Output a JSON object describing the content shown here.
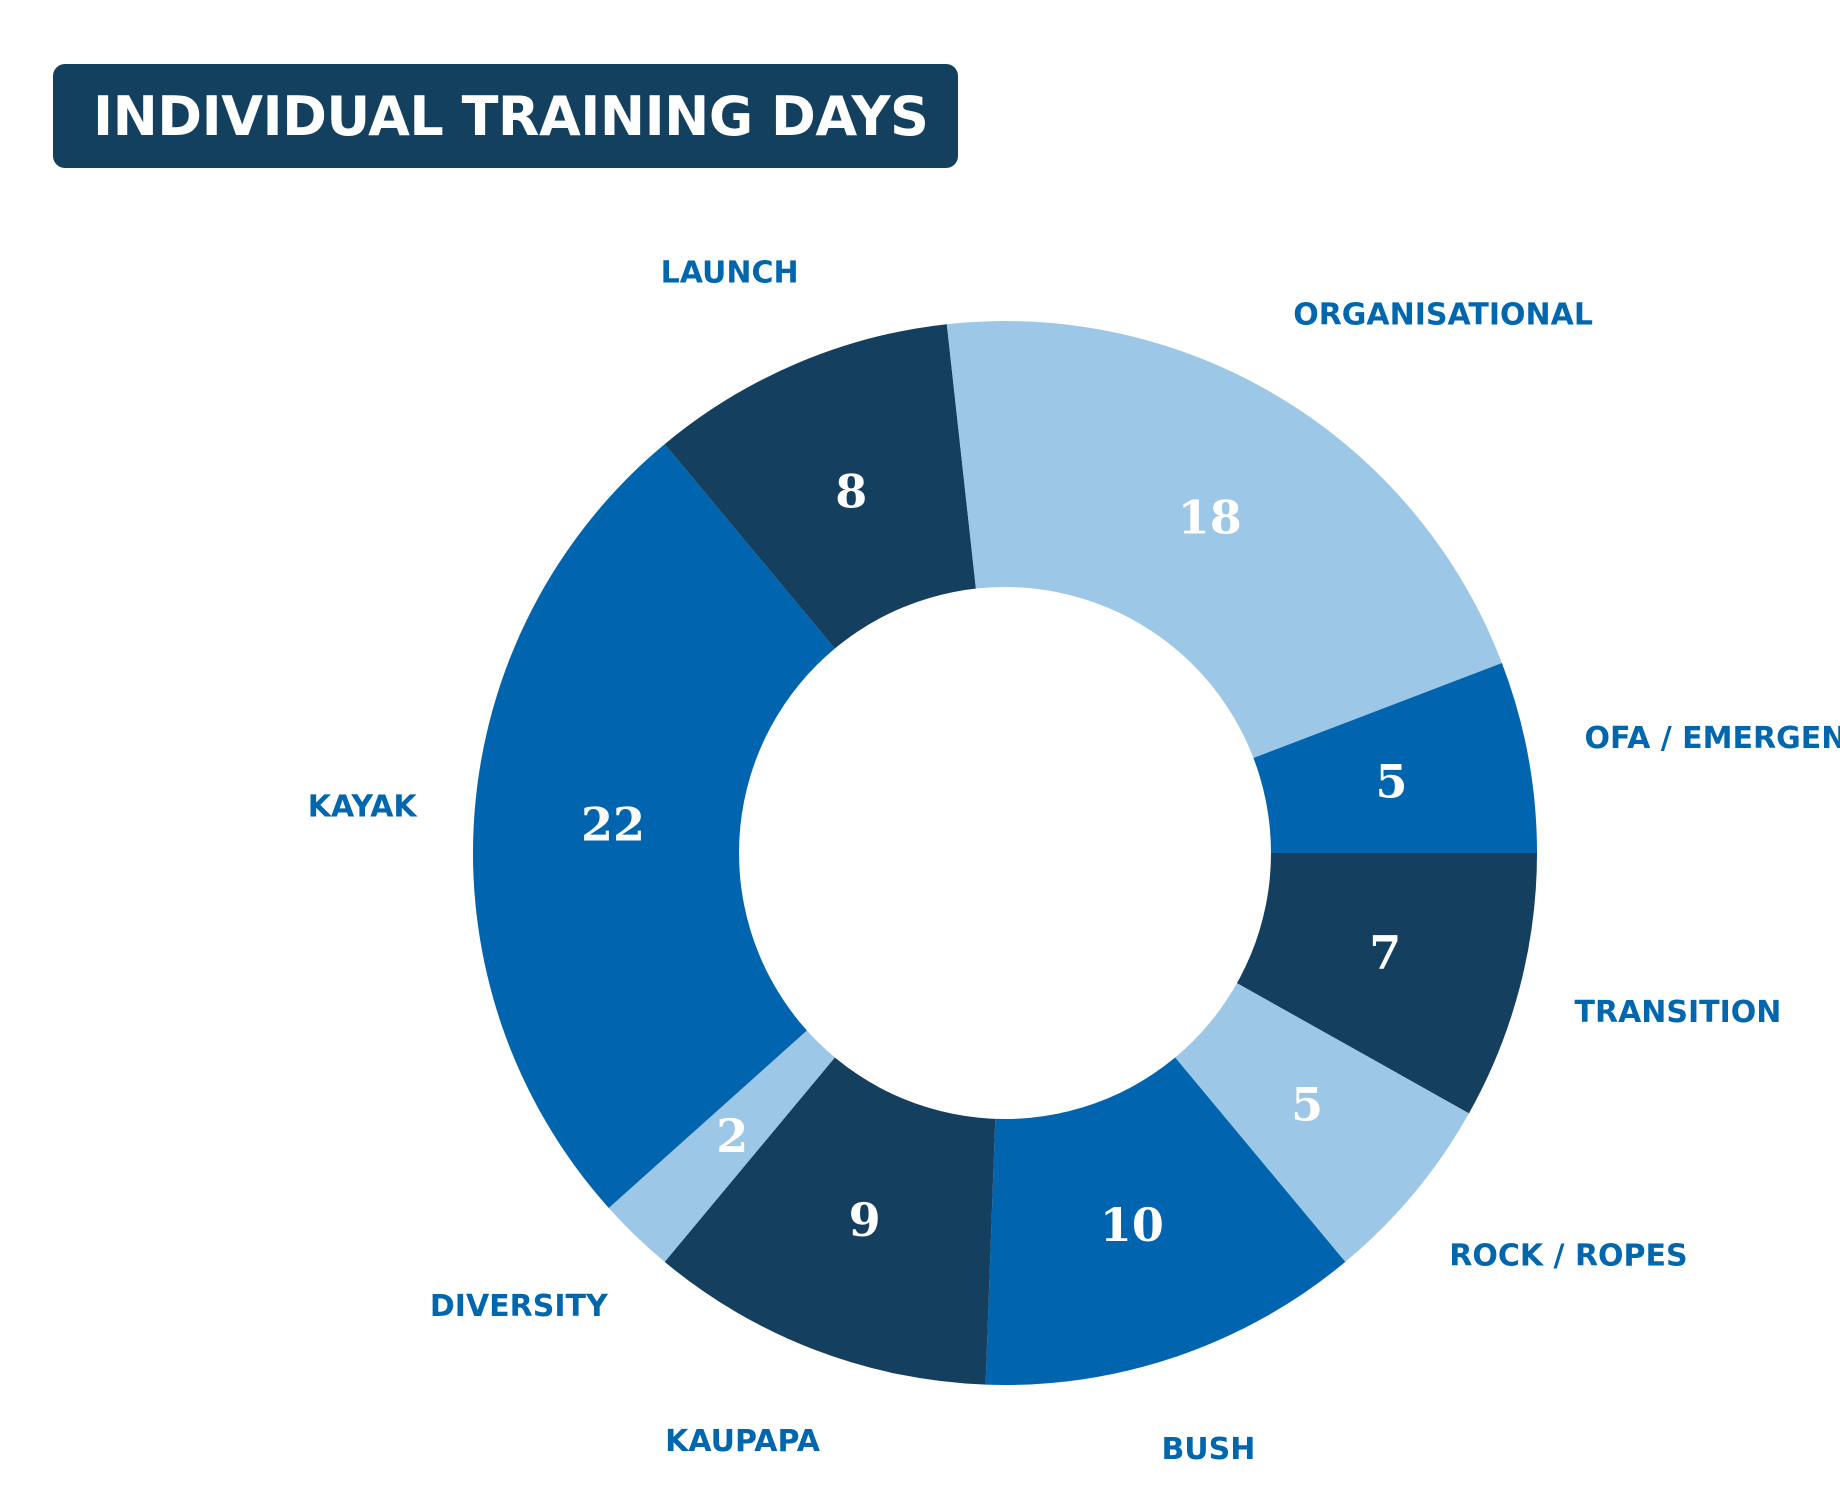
{
  "title": "INDIVIDUAL TRAINING DAYS",
  "chart_data": {
    "type": "pie",
    "subtype": "donut",
    "categories": [
      "TRANSITION",
      "ROCK / ROPES",
      "BUSH",
      "KAUPAPA",
      "DIVERSITY",
      "KAYAK",
      "LAUNCH",
      "ORGANISATIONAL",
      "OFA / EMERGENCY"
    ],
    "values": [
      7,
      5,
      10,
      9,
      2,
      22,
      8,
      18,
      5
    ],
    "colors": [
      "#143F5F",
      "#9DC7E6",
      "#0065AE",
      "#143F5F",
      "#9DC7E6",
      "#0065AE",
      "#143F5F",
      "#9DC7E6",
      "#0065AE"
    ],
    "value_label_color": "#FFFFFF",
    "category_label_color": "#0066AE",
    "title_background": "#14405F",
    "title_color": "#FFFFFF"
  }
}
